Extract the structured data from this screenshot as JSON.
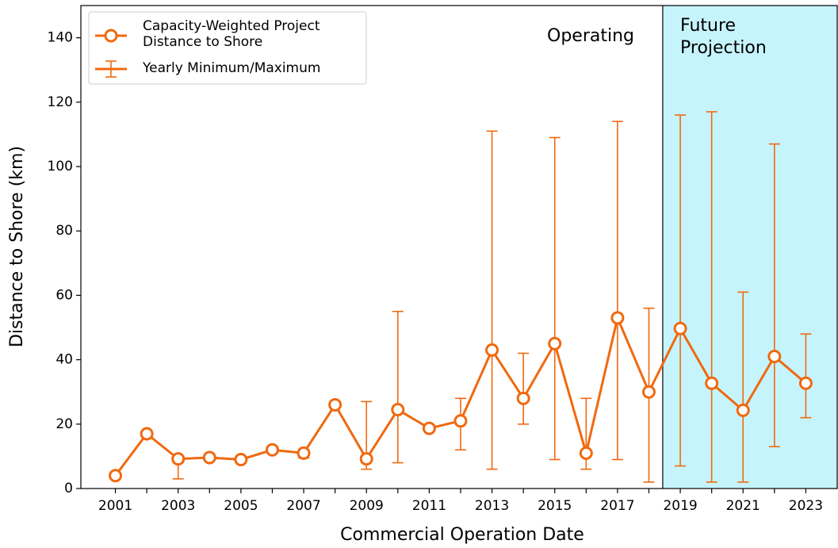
{
  "chart_data": {
    "type": "line",
    "xlabel": "Commercial Operation Date",
    "ylabel": "Distance to Shore (km)",
    "x": [
      2001,
      2002,
      2003,
      2004,
      2005,
      2006,
      2007,
      2008,
      2009,
      2010,
      2011,
      2012,
      2013,
      2014,
      2015,
      2016,
      2017,
      2018,
      2019,
      2020,
      2021,
      2022,
      2023
    ],
    "series": [
      {
        "name": "Capacity-Weighted Project Distance to Shore",
        "color": "#f0690f",
        "values": [
          4,
          17,
          9.2,
          9.6,
          9,
          12,
          11,
          26,
          9.2,
          24.5,
          18.7,
          21,
          43,
          28,
          45,
          11,
          53,
          30,
          49.7,
          32.7,
          24.3,
          41,
          32.7
        ],
        "min": [
          null,
          null,
          3,
          null,
          null,
          null,
          9.5,
          null,
          6,
          8,
          null,
          12,
          6,
          20,
          9,
          6,
          9,
          2,
          7,
          2,
          2,
          13,
          22
        ],
        "max": [
          null,
          null,
          9.2,
          null,
          null,
          null,
          12,
          null,
          27,
          55,
          null,
          28,
          111,
          42,
          109,
          28,
          114,
          56,
          116,
          117,
          61,
          107,
          48
        ]
      }
    ],
    "errorbar_name": "Yearly Minimum/Maximum",
    "xlim": [
      1999.9,
      2024
    ],
    "xticks": [
      2001,
      2003,
      2005,
      2007,
      2009,
      2011,
      2013,
      2015,
      2017,
      2019,
      2021,
      2023
    ],
    "xminor_ticks": [
      2002,
      2004,
      2006,
      2008,
      2010,
      2012,
      2014,
      2016,
      2018,
      2020,
      2022
    ],
    "ylim": [
      0,
      150
    ],
    "yticks": [
      0,
      20,
      40,
      60,
      80,
      100,
      120,
      140
    ],
    "regions": [
      {
        "label": "Operating"
      },
      {
        "label": "Future Projection",
        "start": 2018.44,
        "color": "#c6f4fd"
      }
    ],
    "legend": "upper left"
  }
}
